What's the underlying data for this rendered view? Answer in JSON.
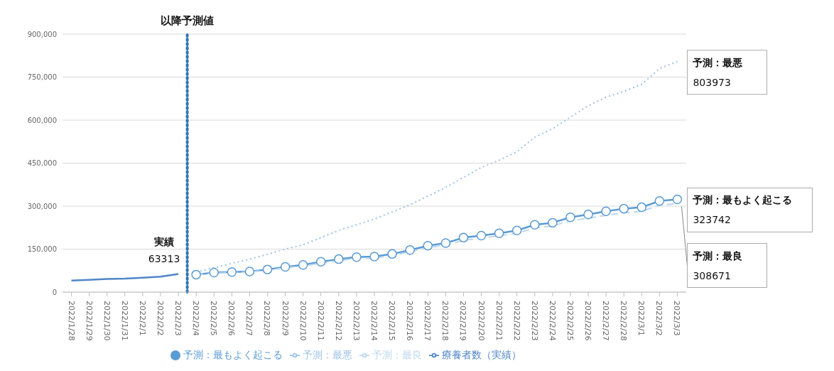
{
  "chart_data": {
    "type": "line",
    "categories": [
      "2022/1/28",
      "2022/1/29",
      "2022/1/30",
      "2022/1/31",
      "2022/2/1",
      "2022/2/2",
      "2022/2/3",
      "2022/2/4",
      "2022/2/5",
      "2022/2/6",
      "2022/2/7",
      "2022/2/8",
      "2022/2/9",
      "2022/2/10",
      "2022/2/11",
      "2022/2/12",
      "2022/2/13",
      "2022/2/14",
      "2022/2/15",
      "2022/2/16",
      "2022/2/17",
      "2022/2/18",
      "2022/2/19",
      "2022/2/20",
      "2022/2/21",
      "2022/2/22",
      "2022/2/23",
      "2022/2/24",
      "2022/2/25",
      "2022/2/26",
      "2022/2/27",
      "2022/2/28",
      "2022/3/1",
      "2022/3/2",
      "2022/3/3"
    ],
    "series": [
      {
        "name": "療養者数（実績）",
        "color": "#4f86c6",
        "marker": "none",
        "line_style": "solid",
        "values": [
          40000,
          43000,
          46000,
          47000,
          50000,
          54000,
          63313,
          null,
          null,
          null,
          null,
          null,
          null,
          null,
          null,
          null,
          null,
          null,
          null,
          null,
          null,
          null,
          null,
          null,
          null,
          null,
          null,
          null,
          null,
          null,
          null,
          null,
          null,
          null,
          null
        ],
        "value_labels": [
          null,
          null,
          null,
          null,
          null,
          null,
          "63313",
          null,
          null,
          null,
          null,
          null,
          null,
          null,
          null,
          null,
          null,
          null,
          null,
          null,
          null,
          null,
          null,
          null,
          null,
          null,
          null,
          null,
          null,
          null,
          null,
          null,
          null,
          null,
          null
        ]
      },
      {
        "name": "予測：最もよく起こる",
        "color": "#5b9bd5",
        "marker": "circle",
        "line_style": "solid",
        "values": [
          null,
          null,
          null,
          null,
          null,
          null,
          null,
          61000,
          68000,
          70000,
          72000,
          79000,
          88000,
          95000,
          106000,
          115000,
          122000,
          124000,
          133000,
          147000,
          162000,
          171000,
          190000,
          197000,
          205000,
          215000,
          235000,
          242000,
          261000,
          271000,
          282000,
          291000,
          296000,
          318000,
          323742
        ],
        "value_labels": [
          null,
          null,
          null,
          null,
          null,
          null,
          null,
          null,
          null,
          null,
          null,
          null,
          null,
          null,
          null,
          null,
          null,
          null,
          null,
          null,
          null,
          null,
          null,
          null,
          null,
          null,
          null,
          null,
          null,
          null,
          null,
          null,
          null,
          null,
          "323742"
        ]
      },
      {
        "name": "予測：最良",
        "color": "#bdd7ee",
        "marker": "none",
        "line_style": "dashed",
        "values": [
          null,
          null,
          null,
          null,
          null,
          null,
          null,
          60000,
          66000,
          68000,
          70000,
          76000,
          85000,
          91000,
          101000,
          110000,
          117000,
          119000,
          127000,
          141000,
          155000,
          163000,
          181000,
          188000,
          196000,
          205000,
          224000,
          231000,
          249000,
          258000,
          268000,
          277000,
          282000,
          303000,
          308671
        ],
        "value_labels": [
          null,
          null,
          null,
          null,
          null,
          null,
          null,
          null,
          null,
          null,
          null,
          null,
          null,
          null,
          null,
          null,
          null,
          null,
          null,
          null,
          null,
          null,
          null,
          null,
          null,
          null,
          null,
          null,
          null,
          null,
          null,
          null,
          null,
          null,
          "308671"
        ]
      },
      {
        "name": "予測：最悪",
        "color": "#9dc3e6",
        "marker": "none",
        "line_style": "dotted",
        "values": [
          null,
          null,
          null,
          null,
          null,
          null,
          null,
          70000,
          85000,
          100000,
          115000,
          132000,
          150000,
          165000,
          190000,
          215000,
          235000,
          255000,
          280000,
          305000,
          335000,
          365000,
          400000,
          435000,
          460000,
          490000,
          540000,
          570000,
          610000,
          650000,
          680000,
          700000,
          725000,
          780000,
          803973
        ],
        "value_labels": [
          null,
          null,
          null,
          null,
          null,
          null,
          null,
          null,
          null,
          null,
          null,
          null,
          null,
          null,
          null,
          null,
          null,
          null,
          null,
          null,
          null,
          null,
          null,
          null,
          null,
          null,
          null,
          null,
          null,
          null,
          null,
          null,
          null,
          null,
          "803973"
        ]
      }
    ],
    "ylim": [
      0,
      900000
    ],
    "yticks": [
      {
        "value": 0,
        "label": "0"
      },
      {
        "value": 150000,
        "label": "150,000"
      },
      {
        "value": 300000,
        "label": "300,000"
      },
      {
        "value": 450000,
        "label": "450,000"
      },
      {
        "value": 600000,
        "label": "600,000"
      },
      {
        "value": 750000,
        "label": "750,000"
      },
      {
        "value": 900000,
        "label": "900,000"
      }
    ],
    "grid": "y",
    "legend": "bottom",
    "ref_lines": [
      {
        "axis": "x",
        "value": "2022/2/4",
        "label": "以降予測値",
        "color": "#2e75b6",
        "line_style": "dotted"
      }
    ],
    "annotations": [
      {
        "text": "実績",
        "x": "2022/2/3",
        "y": 63313
      },
      {
        "text": "予測：最もよく起こる",
        "x": "2022/3/3",
        "y": 323742
      },
      {
        "text": "予測：最良",
        "x": "2022/3/3",
        "y": 308671
      },
      {
        "text": "予測：最悪",
        "x": "2022/3/3",
        "y": 803973
      }
    ]
  }
}
